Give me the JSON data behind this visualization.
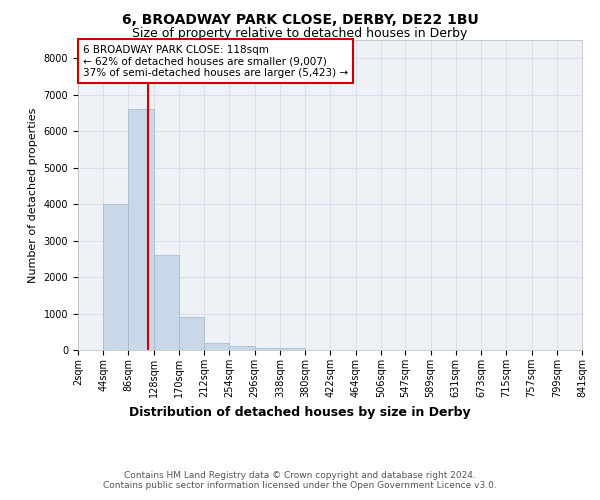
{
  "title1": "6, BROADWAY PARK CLOSE, DERBY, DE22 1BU",
  "title2": "Size of property relative to detached houses in Derby",
  "xlabel": "Distribution of detached houses by size in Derby",
  "ylabel": "Number of detached properties",
  "bin_edges": [
    2,
    44,
    86,
    128,
    170,
    212,
    254,
    296,
    338,
    380,
    422,
    464,
    506,
    547,
    589,
    631,
    673,
    715,
    757,
    799,
    841
  ],
  "bar_heights": [
    0,
    4000,
    6600,
    2600,
    900,
    200,
    100,
    50,
    50,
    0,
    0,
    0,
    0,
    0,
    0,
    0,
    0,
    0,
    0,
    0
  ],
  "bar_color": "#c8d8e8",
  "bar_edgecolor": "#a0b8cc",
  "bar_linewidth": 0.5,
  "vline_x": 118,
  "vline_color": "#cc0000",
  "vline_linewidth": 1.5,
  "annotation_text": "6 BROADWAY PARK CLOSE: 118sqm\n← 62% of detached houses are smaller (9,007)\n37% of semi-detached houses are larger (5,423) →",
  "annotation_box_edgecolor": "#cc0000",
  "annotation_box_facecolor": "#ffffff",
  "ylim": [
    0,
    8500
  ],
  "yticks": [
    0,
    1000,
    2000,
    3000,
    4000,
    5000,
    6000,
    7000,
    8000
  ],
  "grid_color": "#d0d8e8",
  "background_color": "#eef2f7",
  "footer_text": "Contains HM Land Registry data © Crown copyright and database right 2024.\nContains public sector information licensed under the Open Government Licence v3.0.",
  "title1_fontsize": 10,
  "title2_fontsize": 9,
  "xlabel_fontsize": 9,
  "ylabel_fontsize": 8,
  "tick_fontsize": 7,
  "annotation_fontsize": 7.5,
  "footer_fontsize": 6.5
}
